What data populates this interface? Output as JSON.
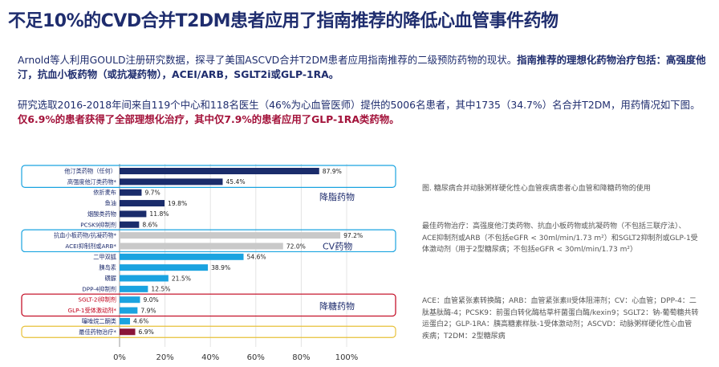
{
  "title": "不足10%的CVD合并T2DM患者应用了指南推荐的降低心血管事件药物",
  "para1": {
    "text": "Arnold等人利用GOULD注册研究数据，探寻了美国ASCVD合并T2DM患者应用指南推荐的二级预防药物的现状。",
    "bold": "指南推荐的理想化药物治疗包括：高强度他汀，抗血小板药物（或抗凝药物），ACEI/ARB，SGLT2i或GLP-1RA。"
  },
  "para2": {
    "text": "研究选取2016-2018年间来自119个中心和118名医生（46%为心血管医师）提供的5006名患者，其中1735（34.7%）名合并T2DM，用药情况如下图。",
    "red": "仅6.9%的患者获得了全部理想化治疗，其中仅7.9%的患者应用了GLP-1RA类药物。"
  },
  "chart_data": {
    "type": "bar",
    "orientation": "horizontal",
    "categories": [
      "他汀类药物（任何）",
      "高强度他汀类药物*",
      "依折麦布",
      "鱼油",
      "烟酸类药物",
      "PCSK9抑制剂",
      "抗血小板药物/抗凝药物*",
      "ACEI抑制剂或ARB*",
      "二甲双胍",
      "胰岛素",
      "磺脲",
      "DPP-4抑制剂",
      "SGLT-2i抑制剂",
      "GLP-1受体激动剂*",
      "噻唑烷二酮类",
      "最佳药物治疗*"
    ],
    "values": [
      87.9,
      45.4,
      9.7,
      19.8,
      11.8,
      8.6,
      97.2,
      72.0,
      54.6,
      38.9,
      21.5,
      12.5,
      9.0,
      7.9,
      4.6,
      6.9
    ],
    "labels": [
      "87.9%",
      "45.4%",
      "9.7%",
      "19.8%",
      "11.8%",
      "8.6%",
      "97.2%",
      "72.0%",
      "54.6%",
      "38.9%",
      "21.5%",
      "12.5%",
      "9.0%",
      "7.9%",
      "4.6%",
      "6.9%"
    ],
    "groups": [
      "lipid",
      "lipid",
      "lipid",
      "lipid",
      "lipid",
      "lipid",
      "cv",
      "cv",
      "glucose",
      "glucose",
      "glucose",
      "glucose",
      "glucose",
      "glucose",
      "glucose",
      "optimal"
    ],
    "xlim": [
      0,
      100
    ],
    "xticks": [
      "0%",
      "20%",
      "40%",
      "60%",
      "80%",
      "100%"
    ],
    "group_labels": {
      "lipid": "降脂药物",
      "cv": "CV药物",
      "glucose": "降糖药物"
    },
    "colors": {
      "lipid": "#1a2c6b",
      "cv": "#c9c9c9",
      "glucose": "#1aa3e0",
      "optimal": "#8a1538",
      "label_red": "#c0001a"
    },
    "red_label_indices": [
      12,
      13
    ]
  },
  "notes": {
    "caption": "图. 糖尿病合并动脉粥样硬化性心血管疾病患者心血管和降糖药物的使用",
    "optimal": "最佳药物治疗：高强度他汀类药物、抗血小板药物或抗凝药物（不包括三联疗法）、ACE抑制剂或ARB（不包括eGFR < 30ml/min/1.73 m²）和SGLT2抑制剂或GLP-1受体激动剂（用于2型糖尿病；不包括eGFR < 30ml/min/1.73 m²）",
    "abbrev": "ACE：血管紧张素转换酶；ARB：血管紧张素II受体阻滞剂；CV：心血管；DPP-4：二肽基肽酶-4；PCSK9：前蛋白转化酶枯草杆菌蛋白酶/kexin9；SGLT2：钠-葡萄糖共转运蛋白2；GLP-1RA：胰高糖素样肽-1受体激动剂；ASCVD：动脉粥样硬化性心血管疾病；T2DM：2型糖尿病"
  }
}
